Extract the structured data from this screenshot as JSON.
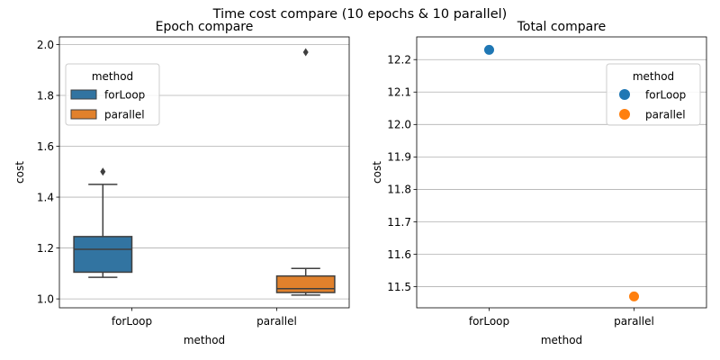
{
  "title": "Time cost compare (10 epochs & 10 parallel)",
  "colors": {
    "forLoop": "#3274a1",
    "parallel": "#e1812c",
    "scatter_forLoop": "#1f77b4",
    "scatter_parallel": "#ff7f0e",
    "grid": "#b0b0b0",
    "box_line": "#3f3f3f"
  },
  "chart_data": [
    {
      "type": "box",
      "title": "Epoch compare",
      "xlabel": "method",
      "ylabel": "cost",
      "categories": [
        "forLoop",
        "parallel"
      ],
      "ylim": [
        0.965,
        2.03
      ],
      "yticks": [
        1.0,
        1.2,
        1.4,
        1.6,
        1.8,
        2.0
      ],
      "ytick_labels": [
        "1.0",
        "1.2",
        "1.4",
        "1.6",
        "1.8",
        "2.0"
      ],
      "grid": "horizontal",
      "legend": {
        "title": "method",
        "placement": "top-left",
        "entries": [
          "forLoop",
          "parallel"
        ]
      },
      "series": [
        {
          "name": "forLoop",
          "category": "forLoop",
          "whisker_low": 1.085,
          "q1": 1.105,
          "median": 1.195,
          "q3": 1.245,
          "whisker_high": 1.45,
          "outliers": [
            1.5
          ]
        },
        {
          "name": "parallel",
          "category": "parallel",
          "whisker_low": 1.015,
          "q1": 1.025,
          "median": 1.04,
          "q3": 1.09,
          "whisker_high": 1.12,
          "outliers": [
            1.97
          ]
        }
      ]
    },
    {
      "type": "scatter",
      "title": "Total compare",
      "xlabel": "method",
      "ylabel": "cost",
      "categories": [
        "forLoop",
        "parallel"
      ],
      "ylim": [
        11.435,
        12.27
      ],
      "yticks": [
        11.5,
        11.6,
        11.7,
        11.8,
        11.9,
        12.0,
        12.1,
        12.2
      ],
      "ytick_labels": [
        "11.5",
        "11.6",
        "11.7",
        "11.8",
        "11.9",
        "12.0",
        "12.1",
        "12.2"
      ],
      "grid": "horizontal",
      "legend": {
        "title": "method",
        "placement": "top-right",
        "entries": [
          "forLoop",
          "parallel"
        ]
      },
      "series": [
        {
          "name": "forLoop",
          "category": "forLoop",
          "value": 12.23
        },
        {
          "name": "parallel",
          "category": "parallel",
          "value": 11.47
        }
      ]
    }
  ]
}
